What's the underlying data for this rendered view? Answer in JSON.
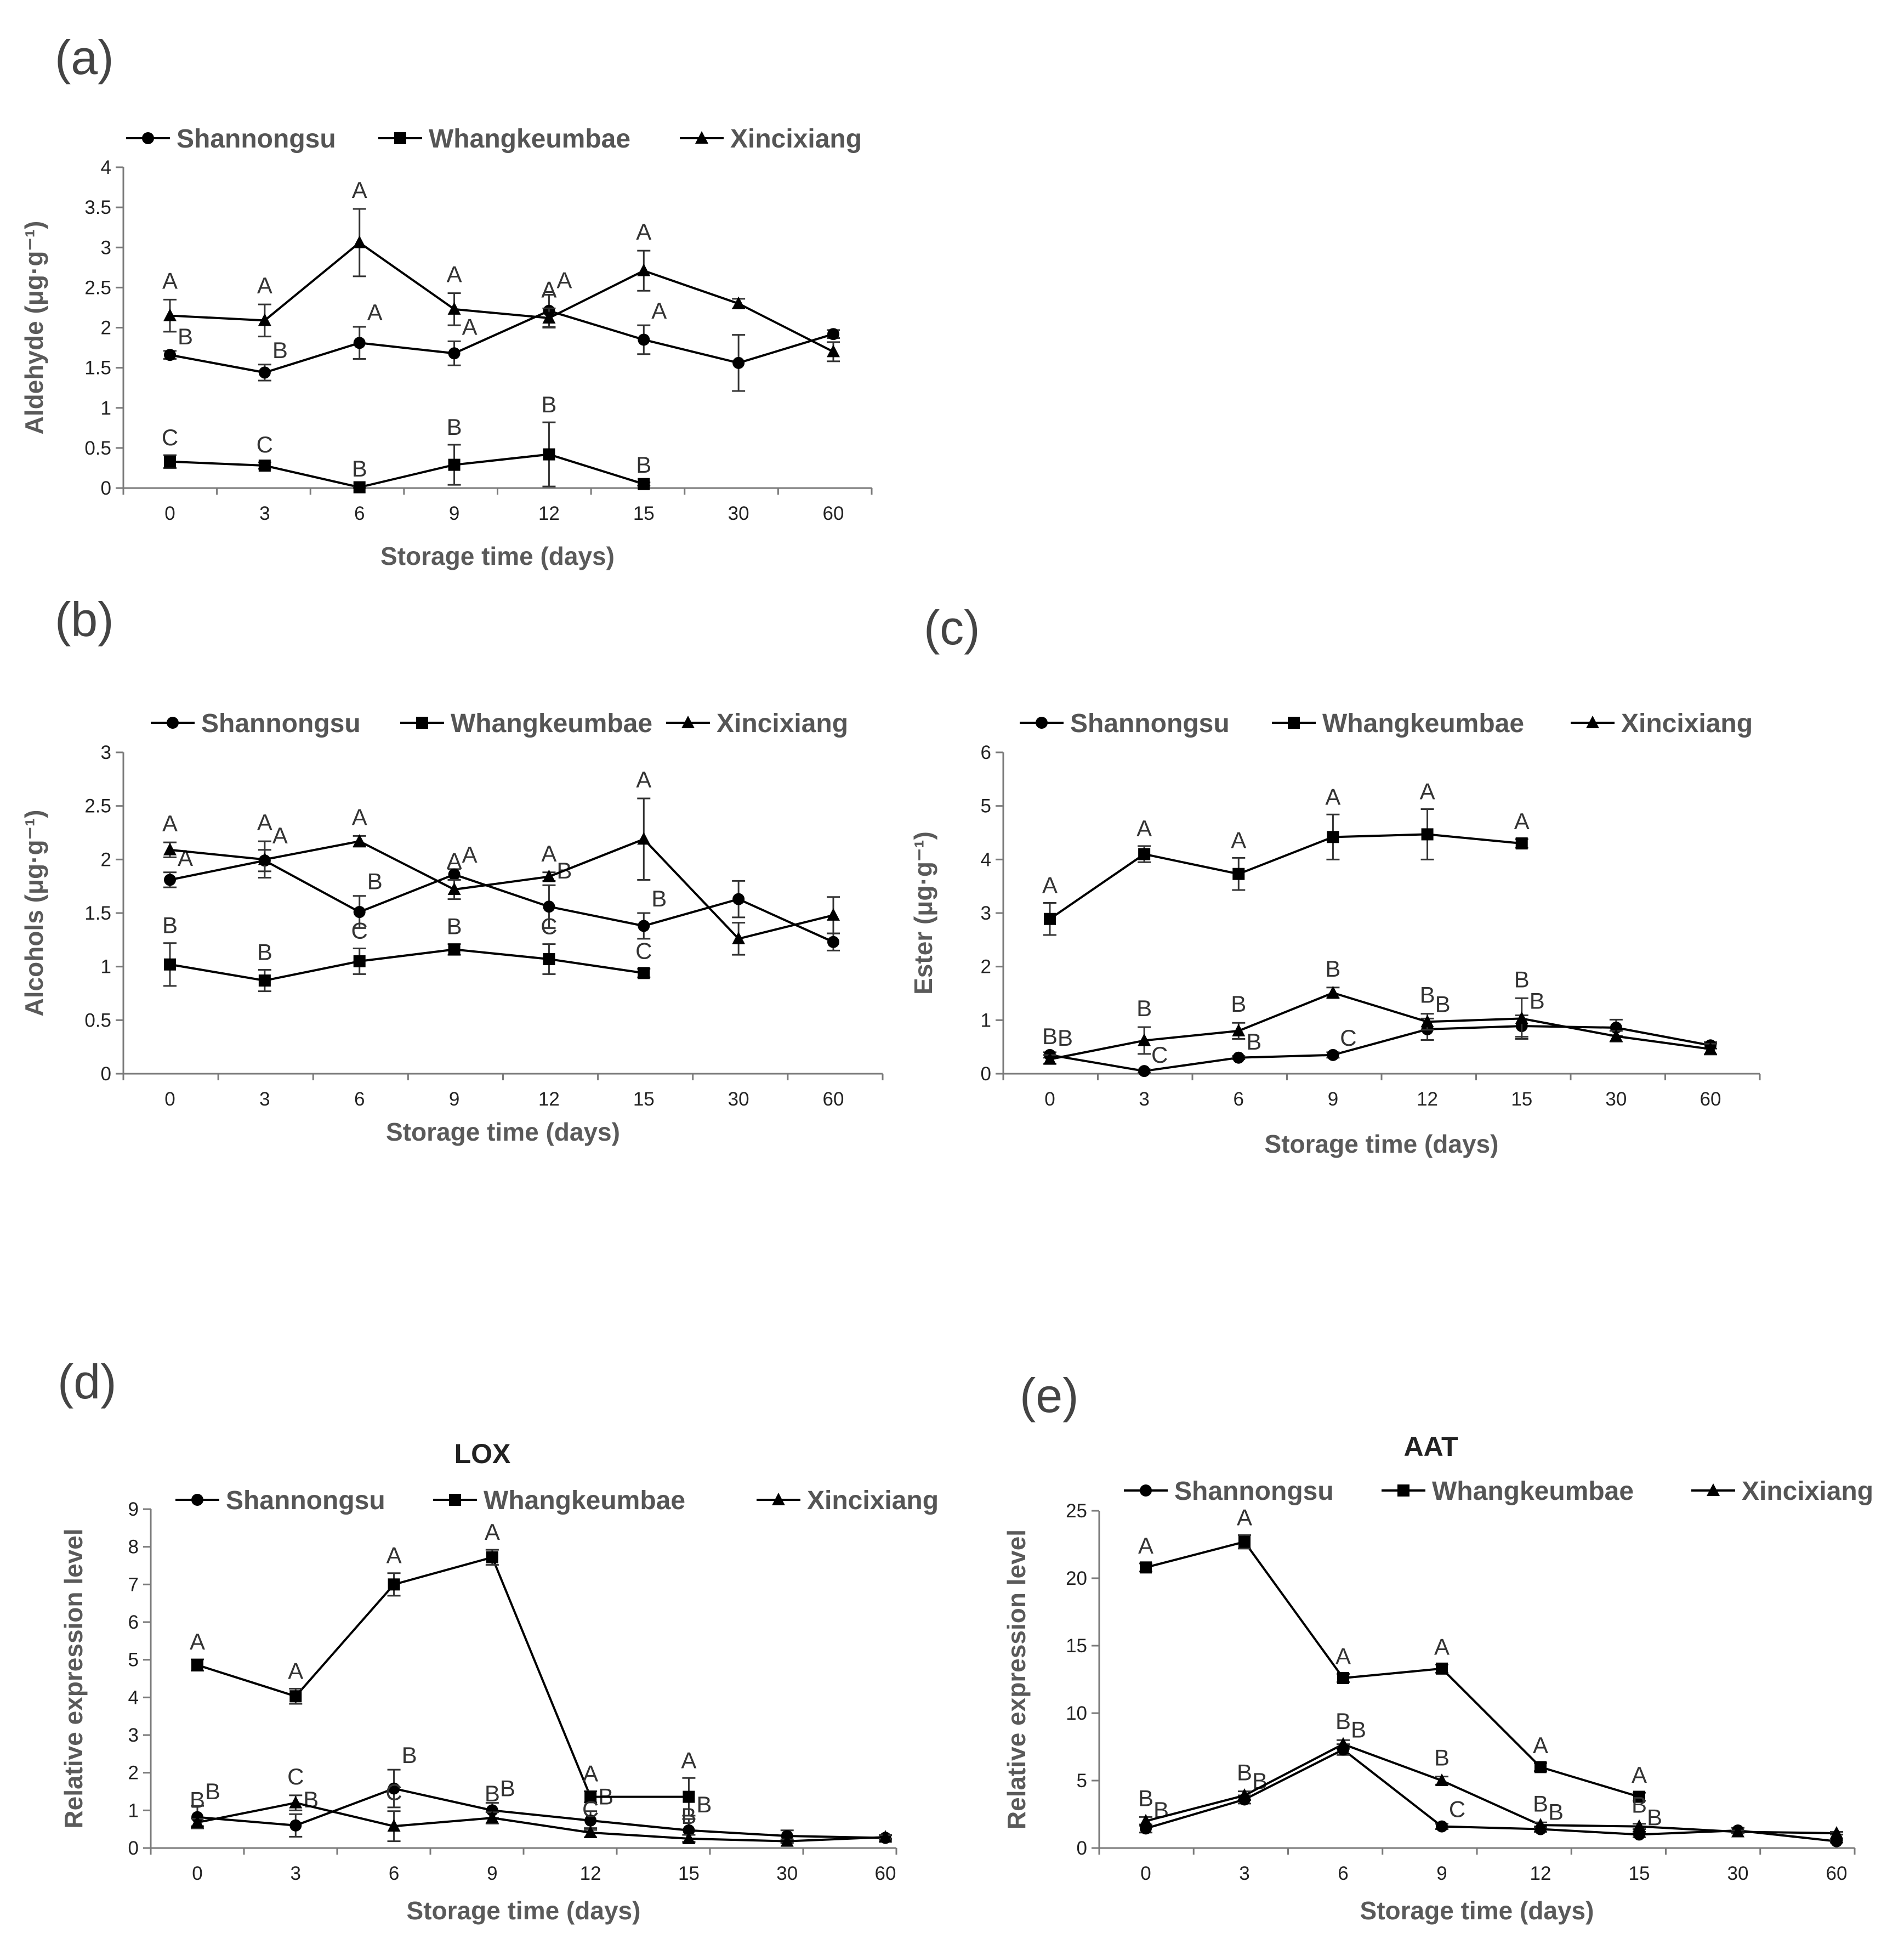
{
  "figure": {
    "legend_items": [
      {
        "name": "Shannongsu",
        "marker": "circle"
      },
      {
        "name": "Whangkeumbae",
        "marker": "square"
      },
      {
        "name": "Xincixiang",
        "marker": "triangle"
      }
    ],
    "colors": {
      "series": "#000000",
      "axis": "#7a7a7a",
      "text": "#444444"
    }
  },
  "chart_data": [
    {
      "id": "a",
      "panel_label": "(a)",
      "type": "line",
      "title": "",
      "xlabel": "Storage time (days)",
      "ylabel": "Aldehyde (μg·g⁻¹)",
      "categories": [
        "0",
        "3",
        "6",
        "9",
        "12",
        "15",
        "30",
        "60"
      ],
      "ylim": [
        0,
        4
      ],
      "yticks": [
        "0",
        "0.5",
        "1",
        "1.5",
        "2",
        "2.5",
        "3",
        "3.5",
        "4"
      ],
      "series": [
        {
          "name": "Shannongsu",
          "marker": "circle",
          "values": [
            1.66,
            1.44,
            1.81,
            1.68,
            2.21,
            1.85,
            1.56,
            1.92
          ],
          "errors": [
            0.05,
            0.1,
            0.2,
            0.15,
            0.2,
            0.18,
            0.35,
            0.05
          ],
          "labels": [
            "B",
            "B",
            "A",
            "A",
            "A",
            "A",
            "",
            ""
          ]
        },
        {
          "name": "Whangkeumbae",
          "marker": "square",
          "values": [
            0.33,
            0.28,
            0.01,
            0.29,
            0.42,
            0.05,
            null,
            null
          ],
          "errors": [
            0.08,
            0.04,
            0.01,
            0.25,
            0.4,
            0.02,
            null,
            null
          ],
          "labels": [
            "C",
            "C",
            "B",
            "B",
            "B",
            "B",
            "",
            ""
          ]
        },
        {
          "name": "Xincixiang",
          "marker": "triangle",
          "values": [
            2.15,
            2.09,
            3.06,
            2.23,
            2.12,
            2.71,
            2.3,
            1.7
          ],
          "errors": [
            0.2,
            0.2,
            0.42,
            0.2,
            0.12,
            0.25,
            0.06,
            0.12
          ],
          "labels": [
            "A",
            "A",
            "A",
            "A",
            "A",
            "A",
            "",
            ""
          ]
        }
      ]
    },
    {
      "id": "b",
      "panel_label": "(b)",
      "type": "line",
      "title": "",
      "xlabel": "Storage time (days)",
      "ylabel": "Alcohols (μg·g⁻¹)",
      "categories": [
        "0",
        "3",
        "6",
        "9",
        "12",
        "15",
        "30",
        "60"
      ],
      "ylim": [
        0,
        3
      ],
      "yticks": [
        "0",
        "0.5",
        "1",
        "1.5",
        "2",
        "2.5",
        "3"
      ],
      "series": [
        {
          "name": "Shannongsu",
          "marker": "circle",
          "values": [
            1.81,
            1.99,
            1.51,
            1.86,
            1.56,
            1.38,
            1.63,
            1.23
          ],
          "errors": [
            0.07,
            0.1,
            0.15,
            0.05,
            0.2,
            0.12,
            0.17,
            0.08
          ],
          "labels": [
            "A",
            "A",
            "B",
            "A",
            "B",
            "B",
            "",
            ""
          ]
        },
        {
          "name": "Whangkeumbae",
          "marker": "square",
          "values": [
            1.02,
            0.87,
            1.05,
            1.16,
            1.07,
            0.94,
            null,
            null
          ],
          "errors": [
            0.2,
            0.1,
            0.12,
            0.05,
            0.14,
            0.04,
            null,
            null
          ],
          "labels": [
            "B",
            "B",
            "C",
            "B",
            "C",
            "C",
            "",
            ""
          ]
        },
        {
          "name": "Xincixiang",
          "marker": "triangle",
          "values": [
            2.09,
            2.0,
            2.17,
            1.72,
            1.84,
            2.19,
            1.26,
            1.48
          ],
          "errors": [
            0.07,
            0.17,
            0.05,
            0.09,
            0.04,
            0.38,
            0.15,
            0.17
          ],
          "labels": [
            "A",
            "A",
            "A",
            "A",
            "A",
            "A",
            "",
            ""
          ]
        }
      ]
    },
    {
      "id": "c",
      "panel_label": "(c)",
      "type": "line",
      "title": "",
      "xlabel": "Storage time (days)",
      "ylabel": "Ester (μg·g⁻¹)",
      "categories": [
        "0",
        "3",
        "6",
        "9",
        "12",
        "15",
        "30",
        "60"
      ],
      "ylim": [
        0,
        6
      ],
      "yticks": [
        "0",
        "1",
        "2",
        "3",
        "4",
        "5",
        "6"
      ],
      "series": [
        {
          "name": "Shannongsu",
          "marker": "circle",
          "values": [
            0.35,
            0.05,
            0.3,
            0.35,
            0.83,
            0.89,
            0.86,
            0.53
          ],
          "errors": [
            0.05,
            0.03,
            0.03,
            0.05,
            0.2,
            0.2,
            0.15,
            0.06
          ],
          "labels": [
            "B",
            "C",
            "B",
            "C",
            "B",
            "B",
            "",
            ""
          ]
        },
        {
          "name": "Whangkeumbae",
          "marker": "square",
          "values": [
            2.89,
            4.1,
            3.73,
            4.42,
            4.47,
            4.3,
            null,
            null
          ],
          "errors": [
            0.3,
            0.15,
            0.3,
            0.42,
            0.47,
            0.08,
            null,
            null
          ],
          "labels": [
            "A",
            "A",
            "A",
            "A",
            "A",
            "A",
            "",
            ""
          ]
        },
        {
          "name": "Xincixiang",
          "marker": "triangle",
          "values": [
            0.27,
            0.62,
            0.8,
            1.51,
            0.97,
            1.03,
            0.7,
            0.46
          ],
          "errors": [
            0.08,
            0.25,
            0.15,
            0.1,
            0.15,
            0.38,
            0.1,
            0.1
          ],
          "labels": [
            "B",
            "B",
            "B",
            "B",
            "B",
            "B",
            "",
            ""
          ]
        }
      ]
    },
    {
      "id": "d",
      "panel_label": "(d)",
      "type": "line",
      "title": "LOX",
      "xlabel": "Storage time (days)",
      "ylabel": "Relative expression level",
      "categories": [
        "0",
        "3",
        "6",
        "9",
        "12",
        "15",
        "30",
        "60"
      ],
      "ylim": [
        0,
        9
      ],
      "yticks": [
        "0",
        "1",
        "2",
        "3",
        "4",
        "5",
        "6",
        "7",
        "8",
        "9"
      ],
      "series": [
        {
          "name": "Shannongsu",
          "marker": "circle",
          "values": [
            0.82,
            0.6,
            1.58,
            1.0,
            0.73,
            0.47,
            0.32,
            0.27
          ],
          "errors": [
            0.3,
            0.3,
            0.5,
            0.2,
            0.25,
            0.3,
            0.15,
            0.08
          ],
          "labels": [
            "B",
            "B",
            "B",
            "B",
            "B",
            "B",
            "",
            ""
          ]
        },
        {
          "name": "Whangkeumbae",
          "marker": "square",
          "values": [
            4.86,
            4.03,
            7.0,
            7.72,
            1.36,
            1.36,
            null,
            null
          ],
          "errors": [
            0.15,
            0.2,
            0.3,
            0.2,
            0.15,
            0.5,
            null,
            null
          ],
          "labels": [
            "A",
            "A",
            "A",
            "A",
            "A",
            "A",
            "",
            ""
          ]
        },
        {
          "name": "Xincixiang",
          "marker": "triangle",
          "values": [
            0.68,
            1.2,
            0.58,
            0.8,
            0.41,
            0.25,
            0.18,
            0.29
          ],
          "errors": [
            0.1,
            0.2,
            0.4,
            0.15,
            0.12,
            0.1,
            0.05,
            0.05
          ],
          "labels": [
            "B",
            "C",
            "C",
            "B",
            "C",
            "B",
            "",
            ""
          ]
        }
      ]
    },
    {
      "id": "e",
      "panel_label": "(e)",
      "type": "line",
      "title": "AAT",
      "xlabel": "Storage time (days)",
      "ylabel": "Relative expression level",
      "categories": [
        "0",
        "3",
        "6",
        "9",
        "12",
        "15",
        "30",
        "60"
      ],
      "ylim": [
        0,
        25
      ],
      "yticks": [
        "0",
        "5",
        "10",
        "15",
        "20",
        "25"
      ],
      "series": [
        {
          "name": "Shannongsu",
          "marker": "circle",
          "values": [
            1.45,
            3.6,
            7.3,
            1.6,
            1.4,
            1.0,
            1.3,
            0.5
          ],
          "errors": [
            0.3,
            0.3,
            0.4,
            0.2,
            0.2,
            0.2,
            0.2,
            0.1
          ],
          "labels": [
            "B",
            "B",
            "B",
            "C",
            "B",
            "B",
            "",
            ""
          ]
        },
        {
          "name": "Whangkeumbae",
          "marker": "square",
          "values": [
            20.8,
            22.7,
            12.6,
            13.3,
            6.0,
            3.8,
            null,
            null
          ],
          "errors": [
            0.3,
            0.5,
            0.3,
            0.3,
            0.3,
            0.3,
            null,
            null
          ],
          "labels": [
            "A",
            "A",
            "A",
            "A",
            "A",
            "A",
            "",
            ""
          ]
        },
        {
          "name": "Xincixiang",
          "marker": "triangle",
          "values": [
            2.0,
            3.9,
            7.7,
            5.0,
            1.7,
            1.6,
            1.2,
            1.1
          ],
          "errors": [
            0.3,
            0.3,
            0.3,
            0.3,
            0.2,
            0.2,
            0.1,
            0.1
          ],
          "labels": [
            "B",
            "B",
            "B",
            "B",
            "B",
            "B",
            "",
            ""
          ]
        }
      ]
    }
  ]
}
